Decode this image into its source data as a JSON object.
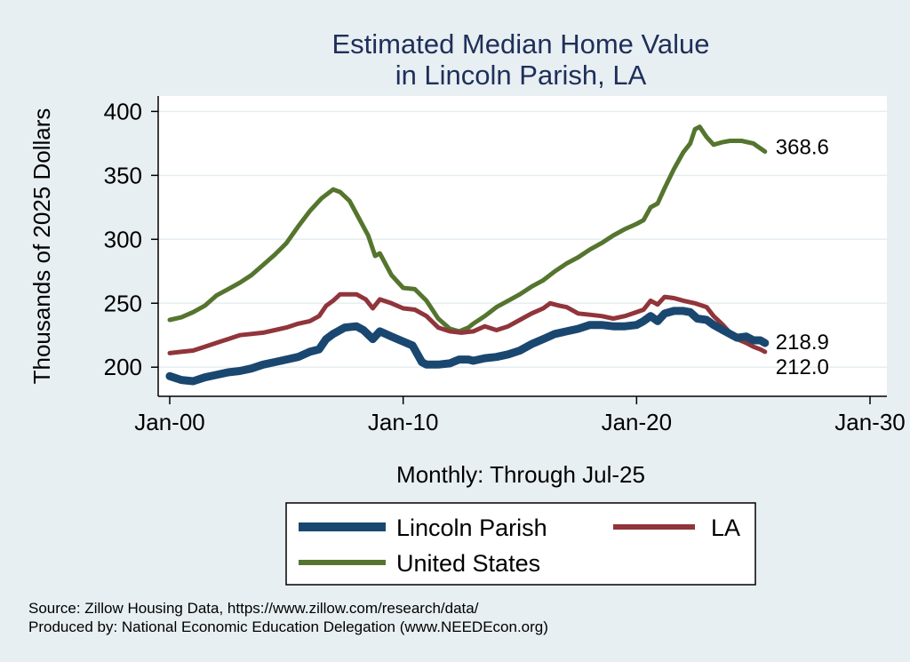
{
  "colors": {
    "background": "#e8eff2",
    "plot_background": "#ffffff",
    "grid": "#e6eef1",
    "axis": "#000000",
    "title": "#1e2f5a",
    "lincoln": "#1a476f",
    "la": "#90353b",
    "us": "#55752f"
  },
  "chart_data": {
    "type": "line",
    "title": [
      "Estimated Median Home Value",
      "in Lincoln Parish, LA"
    ],
    "ylabel": "Thousands of 2025 Dollars",
    "xlabel": "Monthly: Through Jul-25",
    "ylim": [
      180,
      410
    ],
    "yticks": [
      200,
      250,
      300,
      350,
      400
    ],
    "xlim": [
      2000.0,
      2030.0
    ],
    "xticks": [
      {
        "value": 2000,
        "label": "Jan-00"
      },
      {
        "value": 2010,
        "label": "Jan-10"
      },
      {
        "value": 2020,
        "label": "Jan-20"
      },
      {
        "value": 2030,
        "label": "Jan-30"
      }
    ],
    "grid": true,
    "legend": "bottom",
    "series": [
      {
        "name": "Lincoln Parish",
        "color": "#1a476f",
        "end_label": "218.9",
        "points": [
          [
            2000.0,
            193
          ],
          [
            2000.5,
            190
          ],
          [
            2001.0,
            189
          ],
          [
            2001.5,
            192
          ],
          [
            2002.0,
            194
          ],
          [
            2002.5,
            196
          ],
          [
            2003.0,
            197
          ],
          [
            2003.5,
            199
          ],
          [
            2004.0,
            202
          ],
          [
            2004.5,
            204
          ],
          [
            2005.0,
            206
          ],
          [
            2005.5,
            208
          ],
          [
            2006.0,
            212
          ],
          [
            2006.4,
            214
          ],
          [
            2006.7,
            222
          ],
          [
            2007.0,
            226
          ],
          [
            2007.5,
            231
          ],
          [
            2008.0,
            232
          ],
          [
            2008.3,
            229
          ],
          [
            2008.7,
            222
          ],
          [
            2009.0,
            228
          ],
          [
            2009.5,
            224
          ],
          [
            2010.0,
            220
          ],
          [
            2010.4,
            217
          ],
          [
            2010.8,
            204
          ],
          [
            2011.0,
            202
          ],
          [
            2011.5,
            202
          ],
          [
            2012.0,
            203
          ],
          [
            2012.4,
            206
          ],
          [
            2012.8,
            206
          ],
          [
            2013.0,
            205
          ],
          [
            2013.5,
            207
          ],
          [
            2014.0,
            208
          ],
          [
            2014.5,
            210
          ],
          [
            2015.0,
            213
          ],
          [
            2015.5,
            218
          ],
          [
            2016.0,
            222
          ],
          [
            2016.5,
            226
          ],
          [
            2017.0,
            228
          ],
          [
            2017.5,
            230
          ],
          [
            2018.0,
            233
          ],
          [
            2018.5,
            233
          ],
          [
            2019.0,
            232
          ],
          [
            2019.5,
            232
          ],
          [
            2020.0,
            233
          ],
          [
            2020.3,
            236
          ],
          [
            2020.6,
            240
          ],
          [
            2020.9,
            236
          ],
          [
            2021.2,
            242
          ],
          [
            2021.6,
            244
          ],
          [
            2022.0,
            244
          ],
          [
            2022.3,
            243
          ],
          [
            2022.6,
            238
          ],
          [
            2023.0,
            237
          ],
          [
            2023.3,
            233
          ],
          [
            2023.7,
            229
          ],
          [
            2024.0,
            226
          ],
          [
            2024.3,
            223
          ],
          [
            2024.7,
            224
          ],
          [
            2025.0,
            221
          ],
          [
            2025.3,
            221
          ],
          [
            2025.5,
            218.9
          ]
        ]
      },
      {
        "name": "LA",
        "color": "#90353b",
        "end_label": "212.0",
        "points": [
          [
            2000.0,
            211
          ],
          [
            2000.5,
            212
          ],
          [
            2001.0,
            213
          ],
          [
            2001.5,
            216
          ],
          [
            2002.0,
            219
          ],
          [
            2002.5,
            222
          ],
          [
            2003.0,
            225
          ],
          [
            2003.5,
            226
          ],
          [
            2004.0,
            227
          ],
          [
            2004.5,
            229
          ],
          [
            2005.0,
            231
          ],
          [
            2005.5,
            234
          ],
          [
            2006.0,
            236
          ],
          [
            2006.4,
            240
          ],
          [
            2006.7,
            248
          ],
          [
            2007.0,
            252
          ],
          [
            2007.3,
            257
          ],
          [
            2007.7,
            257
          ],
          [
            2008.0,
            257
          ],
          [
            2008.4,
            253
          ],
          [
            2008.7,
            246
          ],
          [
            2009.0,
            253
          ],
          [
            2009.5,
            250
          ],
          [
            2010.0,
            246
          ],
          [
            2010.5,
            245
          ],
          [
            2011.0,
            240
          ],
          [
            2011.5,
            231
          ],
          [
            2012.0,
            228
          ],
          [
            2012.5,
            227
          ],
          [
            2013.0,
            228
          ],
          [
            2013.5,
            232
          ],
          [
            2014.0,
            229
          ],
          [
            2014.5,
            232
          ],
          [
            2015.0,
            237
          ],
          [
            2015.5,
            242
          ],
          [
            2016.0,
            246
          ],
          [
            2016.3,
            250
          ],
          [
            2016.7,
            248
          ],
          [
            2017.0,
            247
          ],
          [
            2017.5,
            242
          ],
          [
            2018.0,
            241
          ],
          [
            2018.5,
            240
          ],
          [
            2019.0,
            238
          ],
          [
            2019.5,
            240
          ],
          [
            2020.0,
            243
          ],
          [
            2020.3,
            245
          ],
          [
            2020.6,
            252
          ],
          [
            2020.9,
            249
          ],
          [
            2021.2,
            255
          ],
          [
            2021.6,
            254
          ],
          [
            2022.0,
            252
          ],
          [
            2022.5,
            250
          ],
          [
            2023.0,
            247
          ],
          [
            2023.3,
            240
          ],
          [
            2023.7,
            233
          ],
          [
            2024.0,
            227
          ],
          [
            2024.3,
            222
          ],
          [
            2024.7,
            219
          ],
          [
            2025.0,
            216
          ],
          [
            2025.3,
            214
          ],
          [
            2025.5,
            212.0
          ]
        ]
      },
      {
        "name": "United States",
        "color": "#55752f",
        "end_label": "368.6",
        "points": [
          [
            2000.0,
            237
          ],
          [
            2000.5,
            239
          ],
          [
            2001.0,
            243
          ],
          [
            2001.5,
            248
          ],
          [
            2002.0,
            256
          ],
          [
            2002.5,
            261
          ],
          [
            2003.0,
            266
          ],
          [
            2003.5,
            272
          ],
          [
            2004.0,
            280
          ],
          [
            2004.5,
            288
          ],
          [
            2005.0,
            297
          ],
          [
            2005.5,
            310
          ],
          [
            2006.0,
            322
          ],
          [
            2006.5,
            332
          ],
          [
            2007.0,
            339
          ],
          [
            2007.3,
            337
          ],
          [
            2007.7,
            330
          ],
          [
            2008.0,
            320
          ],
          [
            2008.5,
            303
          ],
          [
            2008.8,
            287
          ],
          [
            2009.0,
            289
          ],
          [
            2009.5,
            272
          ],
          [
            2010.0,
            262
          ],
          [
            2010.5,
            261
          ],
          [
            2011.0,
            252
          ],
          [
            2011.5,
            238
          ],
          [
            2012.0,
            230
          ],
          [
            2012.4,
            228
          ],
          [
            2012.8,
            231
          ],
          [
            2013.0,
            234
          ],
          [
            2013.5,
            240
          ],
          [
            2014.0,
            247
          ],
          [
            2014.5,
            252
          ],
          [
            2015.0,
            257
          ],
          [
            2015.5,
            263
          ],
          [
            2016.0,
            268
          ],
          [
            2016.5,
            275
          ],
          [
            2017.0,
            281
          ],
          [
            2017.5,
            286
          ],
          [
            2018.0,
            292
          ],
          [
            2018.5,
            297
          ],
          [
            2019.0,
            303
          ],
          [
            2019.5,
            308
          ],
          [
            2020.0,
            312
          ],
          [
            2020.3,
            315
          ],
          [
            2020.6,
            325
          ],
          [
            2020.9,
            328
          ],
          [
            2021.2,
            340
          ],
          [
            2021.6,
            355
          ],
          [
            2022.0,
            368
          ],
          [
            2022.3,
            375
          ],
          [
            2022.5,
            386
          ],
          [
            2022.7,
            388
          ],
          [
            2023.0,
            380
          ],
          [
            2023.3,
            374
          ],
          [
            2023.7,
            376
          ],
          [
            2024.0,
            377
          ],
          [
            2024.5,
            377
          ],
          [
            2025.0,
            375
          ],
          [
            2025.5,
            368.6
          ]
        ]
      }
    ]
  },
  "notes": [
    "Source: Zillow Housing Data, https://www.zillow.com/research/data/",
    "Produced by: National Economic Education Delegation (www.NEEDEcon.org)"
  ]
}
